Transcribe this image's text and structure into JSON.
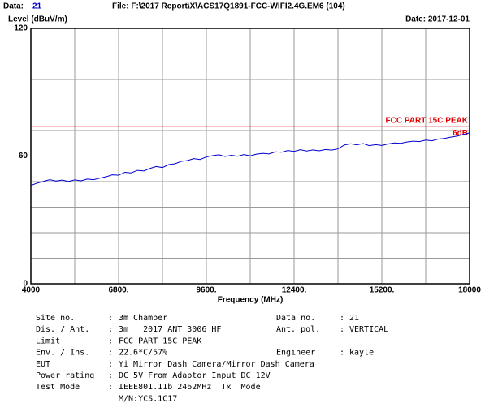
{
  "header": {
    "data_label": "Data:",
    "data_no": "21",
    "file": "File: F:\\2017 Report\\X\\ACS17Q1891-FCC-WIFI2.4G.EM6  (104)",
    "date": "Date: 2017-12-01"
  },
  "chart_data": {
    "type": "line",
    "ylabel": "Level (dBuV/m)",
    "xlabel": "Frequency (MHz)",
    "xlim": [
      4000,
      18000
    ],
    "ylim": [
      0,
      120
    ],
    "xticks": [
      4000,
      {
        "value": 6800,
        "label": "6800."
      },
      {
        "value": 9600,
        "label": "9600."
      },
      {
        "value": 12400,
        "label": "12400."
      },
      {
        "value": 15200,
        "label": "15200."
      },
      18000
    ],
    "yticks": [
      0,
      60,
      120
    ],
    "xgrid": [
      4000,
      5400,
      6800,
      8200,
      9600,
      11000,
      12400,
      13800,
      15200,
      16600,
      18000
    ],
    "ygrid": [
      0,
      12,
      24,
      36,
      48,
      60,
      72,
      84,
      96,
      108,
      120
    ],
    "limits": [
      {
        "name": "FCC PART 15C PEAK",
        "value": 74,
        "color": "#e00000"
      },
      {
        "name": "6dB",
        "value": 68,
        "color": "#e00000"
      }
    ],
    "x": [
      4000,
      4200,
      4400,
      4600,
      4800,
      5000,
      5200,
      5400,
      5600,
      5800,
      6000,
      6200,
      6400,
      6600,
      6800,
      7000,
      7200,
      7400,
      7600,
      7800,
      8000,
      8200,
      8400,
      8600,
      8800,
      9000,
      9200,
      9400,
      9600,
      9800,
      10000,
      10200,
      10400,
      10600,
      10800,
      11000,
      11200,
      11400,
      11600,
      11800,
      12000,
      12200,
      12400,
      12600,
      12800,
      13000,
      13200,
      13400,
      13600,
      13800,
      14000,
      14200,
      14400,
      14600,
      14800,
      15000,
      15200,
      15400,
      15600,
      15800,
      16000,
      16200,
      16400,
      16600,
      16800,
      17000,
      17200,
      17400,
      17600,
      17800,
      18000
    ],
    "series": [
      {
        "color": "#0000cc",
        "values": [
          46.2,
          47.3,
          48.1,
          48.9,
          48.3,
          48.7,
          48.1,
          48.8,
          48.4,
          49.2,
          48.9,
          49.6,
          50.3,
          51.2,
          51.0,
          52.4,
          52.1,
          53.3,
          53.0,
          54.2,
          55.1,
          54.6,
          56.0,
          56.4,
          57.5,
          57.9,
          58.8,
          58.4,
          59.6,
          60.2,
          60.6,
          59.8,
          60.4,
          59.9,
          60.7,
          60.1,
          60.9,
          61.3,
          61.0,
          62.0,
          61.8,
          62.6,
          62.2,
          63.0,
          62.4,
          62.9,
          62.5,
          63.1,
          62.8,
          63.4,
          65.2,
          65.8,
          65.3,
          65.9,
          64.9,
          65.4,
          65.0,
          65.7,
          66.2,
          66.0,
          66.6,
          67.0,
          66.8,
          67.5,
          67.2,
          68.0,
          68.3,
          68.9,
          69.4,
          70.2,
          70.9
        ]
      }
    ]
  },
  "report": {
    "separator": ":",
    "rows": [
      {
        "label": "Site no.",
        "value": "3m Chamber",
        "label2": "Data no.",
        "value2": "21"
      },
      {
        "label": "Dis. / Ant.",
        "value": "3m   2017 ANT 3006 HF",
        "label2": "Ant. pol.",
        "value2": "VERTICAL"
      },
      {
        "label": "Limit",
        "value": "FCC PART 15C PEAK"
      },
      {
        "label": "Env. / Ins.",
        "value": "22.6*C/57%",
        "label2": "Engineer",
        "value2": "kayle"
      },
      {
        "label": "EUT",
        "value": "Yi Mirror Dash Camera/Mirror Dash Camera"
      },
      {
        "label": "Power rating",
        "value": "DC 5V From Adaptor Input DC 12V"
      },
      {
        "label": "Test Mode",
        "value": "IEEE801.11b 2462MHz  Tx  Mode"
      },
      {
        "value": "M/N:YCS.1C17"
      }
    ]
  }
}
